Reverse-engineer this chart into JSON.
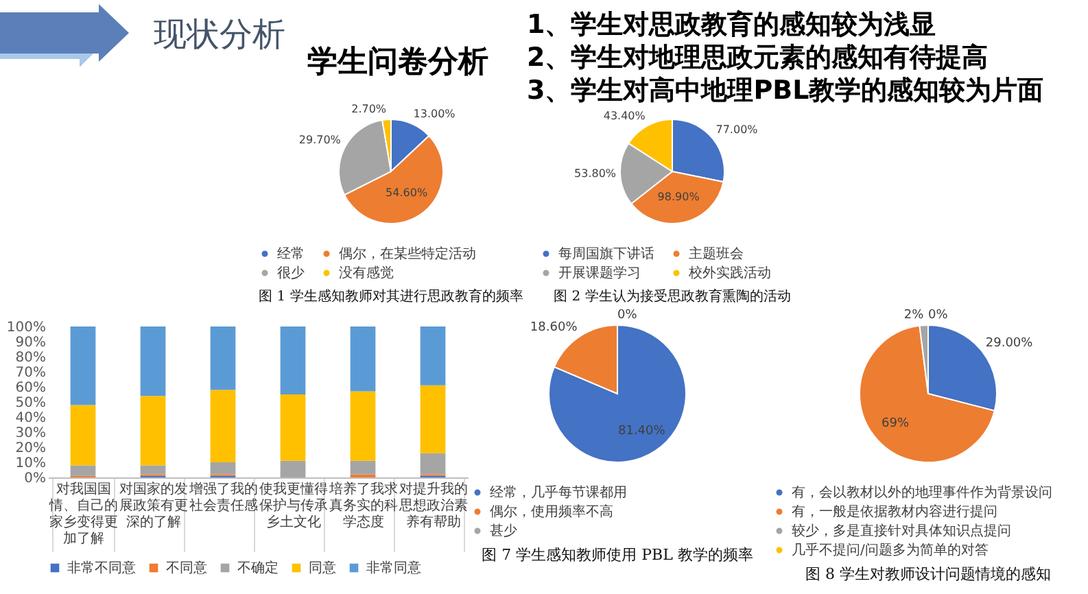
{
  "chart_data": [
    {
      "type": "other",
      "title": "现状分析",
      "subtitle": "学生问卷分析",
      "annotations": [
        "1、学生对思政教育的感知较为浅显",
        "2、学生对地理思政元素的感知有待提高",
        "3、学生对高中地理PBL教学的感知较为片面"
      ]
    },
    {
      "type": "pie",
      "title": "图 1 学生感知教师对其进行思政教育的频率",
      "categories": [
        "经常",
        "偶尔，在某些特定活动",
        "很少",
        "没有感觉"
      ],
      "values": [
        13,
        54.6,
        29.7,
        2.7
      ],
      "value_labels": [
        "13.00%",
        "54.60%",
        "29.70%",
        "2.70%"
      ],
      "colors": [
        "#4472c4",
        "#ed7d31",
        "#a5a5a5",
        "#ffc000"
      ],
      "legend": "bottom"
    },
    {
      "type": "pie",
      "title": "图 2 学生认为接受思政教育熏陶的活动",
      "categories": [
        "每周国旗下讲话",
        "主题班会",
        "开展课题学习",
        "校外实践活动"
      ],
      "values": [
        77,
        98.9,
        53.8,
        43.4
      ],
      "value_labels": [
        "77.00%",
        "98.90%",
        "53.80%",
        "43.40%"
      ],
      "colors": [
        "#4472c4",
        "#ed7d31",
        "#a5a5a5",
        "#ffc000"
      ],
      "legend": "bottom"
    },
    {
      "type": "bar",
      "stacked": true,
      "categories": [
        "对我国国情、自己的家乡变得更加了解",
        "对国家的发展政策有更深的了解",
        "增强了我的社会责任感",
        "使我更懂得保护与传承乡土文化",
        "培养了我求真务实的科学态度",
        "对提升我的思想政治素养有帮助"
      ],
      "series": [
        {
          "name": "非常不同意",
          "color": "#4472c4",
          "values": [
            null,
            1,
            1,
            null,
            null,
            1
          ]
        },
        {
          "name": "不同意",
          "color": "#ed7d31",
          "values": [
            1,
            1,
            1,
            null,
            2,
            1
          ]
        },
        {
          "name": "不确定",
          "color": "#a5a5a5",
          "values": [
            7,
            6,
            8,
            11,
            9,
            14
          ]
        },
        {
          "name": "同意",
          "color": "#ffc000",
          "values": [
            40,
            46,
            48,
            44,
            46,
            45
          ]
        },
        {
          "name": "非常同意",
          "color": "#5b9bd5",
          "values": [
            52,
            46,
            42,
            45,
            43,
            39
          ]
        }
      ],
      "ylim": [
        0,
        100
      ],
      "yticks": [
        {
          "value": 0,
          "label": "0%"
        },
        {
          "value": 10,
          "label": "10%"
        },
        {
          "value": 20,
          "label": "20%"
        },
        {
          "value": 30,
          "label": "30%"
        },
        {
          "value": 40,
          "label": "40%"
        },
        {
          "value": 50,
          "label": "50%"
        },
        {
          "value": 60,
          "label": "60%"
        },
        {
          "value": 70,
          "label": "70%"
        },
        {
          "value": 80,
          "label": "80%"
        },
        {
          "value": 90,
          "label": "90%"
        },
        {
          "value": 100,
          "label": "100%"
        }
      ],
      "grid": false,
      "legend": "bottom"
    },
    {
      "type": "pie",
      "title": "图 7 学生感知教师使用 PBL 教学的频率",
      "categories": [
        "经常，几乎每节课都用",
        "偶尔，使用频率不高",
        "甚少"
      ],
      "values": [
        81.4,
        18.6,
        0
      ],
      "value_labels": [
        "81.40%",
        "18.60%",
        "0%"
      ],
      "colors": [
        "#4472c4",
        "#ed7d31",
        "#a5a5a5"
      ],
      "legend": "bottom"
    },
    {
      "type": "pie",
      "title": "图 8 学生对教师设计问题情境的感知",
      "categories": [
        "有，会以教材以外的地理事件作为背景设问",
        "有，一般是依据教材内容进行提问",
        "较少，多是直接针对具体知识点提问",
        "几乎不提问/问题多为简单的对答"
      ],
      "values": [
        29,
        69,
        2,
        0
      ],
      "value_labels": [
        "29.00%",
        "69%",
        "2%",
        "0%"
      ],
      "colors": [
        "#4472c4",
        "#ed7d31",
        "#a5a5a5",
        "#ffc000"
      ],
      "legend": "bottom"
    }
  ]
}
